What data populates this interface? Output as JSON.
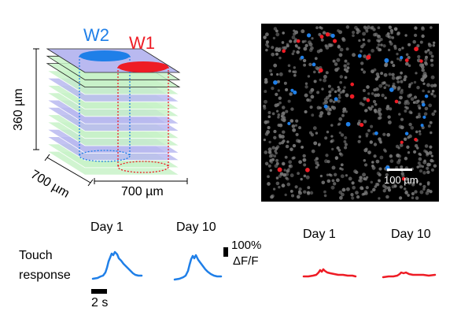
{
  "stack": {
    "w1_label": "W1",
    "w2_label": "W2",
    "depth_label": "360 µm",
    "width_label": "700 µm",
    "length_label": "700 µm",
    "colors": {
      "w1": "#ee1c25",
      "w2": "#1f7fe8",
      "plane_purple": "#b9b9f0",
      "plane_green": "#c8f2c8"
    }
  },
  "micrograph": {
    "scale_bar_label": "100 µm",
    "background": "#000000",
    "cell_color": "#7a7a7a",
    "w1_color": "#ee1c25",
    "w2_color": "#1f7fe8"
  },
  "traces": {
    "row_label": "Touch\nresponse",
    "row_label_line1": "Touch",
    "row_label_line2": "response",
    "time_scale_label": "2 s",
    "amp_scale_label_line1": "100%",
    "amp_scale_label_line2": "ΔF/F",
    "panels": [
      {
        "id": "w2-day1",
        "title": "Day 1",
        "color": "#1f7fe8"
      },
      {
        "id": "w2-day10",
        "title": "Day 10",
        "color": "#1f7fe8"
      },
      {
        "id": "w1-day1",
        "title": "Day 1",
        "color": "#ee1c25"
      },
      {
        "id": "w1-day10",
        "title": "Day 10",
        "color": "#ee1c25"
      }
    ]
  }
}
